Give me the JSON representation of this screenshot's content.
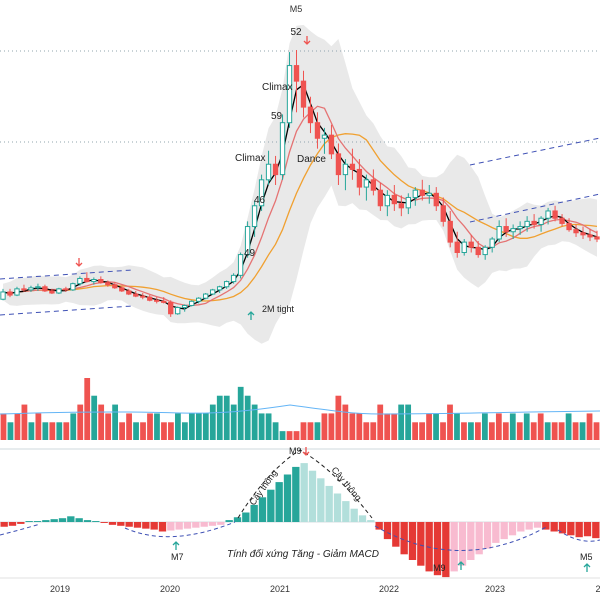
{
  "chart_data": {
    "type": "candlestick",
    "x_axis": {
      "ticks": [
        "2019",
        "2020",
        "2021",
        "2022",
        "2023",
        "2"
      ]
    },
    "price_panel": {
      "candles": [
        [
          2.0,
          3.0,
          1.9,
          2.7
        ],
        [
          2.7,
          3.0,
          2.2,
          2.4
        ],
        [
          2.4,
          3.2,
          2.3,
          3.0
        ],
        [
          3.0,
          3.4,
          2.7,
          2.9
        ],
        [
          2.9,
          3.3,
          2.7,
          3.1
        ],
        [
          3.1,
          3.5,
          2.8,
          3.2
        ],
        [
          3.2,
          3.4,
          2.7,
          2.8
        ],
        [
          2.8,
          3.0,
          2.5,
          2.6
        ],
        [
          2.6,
          3.1,
          2.5,
          3.0
        ],
        [
          3.0,
          3.2,
          2.7,
          2.9
        ],
        [
          2.9,
          3.6,
          2.8,
          3.5
        ],
        [
          3.5,
          4.2,
          3.3,
          4.0
        ],
        [
          4.0,
          4.6,
          3.6,
          3.7
        ],
        [
          3.7,
          4.1,
          3.4,
          3.9
        ],
        [
          3.9,
          4.2,
          3.5,
          3.6
        ],
        [
          3.6,
          3.8,
          3.2,
          3.4
        ],
        [
          3.4,
          3.6,
          3.0,
          3.1
        ],
        [
          3.1,
          3.3,
          2.7,
          2.8
        ],
        [
          2.8,
          3.0,
          2.4,
          2.5
        ],
        [
          2.5,
          2.8,
          2.2,
          2.3
        ],
        [
          2.3,
          2.6,
          2.0,
          2.2
        ],
        [
          2.2,
          2.4,
          1.8,
          1.9
        ],
        [
          1.9,
          2.2,
          1.6,
          1.8
        ],
        [
          1.8,
          2.2,
          1.6,
          1.7
        ],
        [
          1.7,
          1.9,
          0.3,
          0.6
        ],
        [
          0.6,
          1.3,
          0.5,
          1.2
        ],
        [
          1.2,
          1.5,
          0.8,
          1.4
        ],
        [
          1.4,
          1.9,
          1.3,
          1.8
        ],
        [
          1.8,
          2.2,
          1.6,
          2.1
        ],
        [
          2.1,
          2.6,
          2.0,
          2.5
        ],
        [
          2.5,
          3.0,
          2.4,
          2.9
        ],
        [
          2.9,
          3.3,
          2.6,
          3.2
        ],
        [
          3.2,
          3.8,
          3.0,
          3.7
        ],
        [
          3.7,
          4.5,
          3.5,
          4.3
        ],
        [
          4.3,
          6.5,
          4.0,
          6.3
        ],
        [
          6.3,
          9.5,
          6.0,
          9.0
        ],
        [
          9.0,
          11.5,
          8.0,
          11.0
        ],
        [
          11.0,
          14.0,
          10.5,
          13.5
        ],
        [
          13.5,
          16.3,
          13.0,
          15.0
        ],
        [
          15.0,
          15.8,
          13.0,
          14.0
        ],
        [
          14.0,
          19.8,
          13.5,
          19.0
        ],
        [
          19.0,
          25.8,
          18.5,
          24.5
        ],
        [
          24.5,
          26.0,
          20.0,
          23.0
        ],
        [
          23.0,
          24.0,
          19.5,
          20.5
        ],
        [
          20.5,
          21.5,
          18.0,
          19.0
        ],
        [
          19.0,
          20.0,
          16.5,
          17.5
        ],
        [
          17.5,
          18.5,
          16.0,
          17.8
        ],
        [
          17.8,
          18.8,
          15.5,
          16.0
        ],
        [
          16.0,
          17.0,
          13.0,
          14.0
        ],
        [
          14.0,
          15.5,
          12.5,
          15.0
        ],
        [
          15.0,
          16.5,
          13.5,
          14.5
        ],
        [
          14.5,
          15.5,
          12.0,
          12.8
        ],
        [
          12.8,
          14.0,
          11.5,
          13.5
        ],
        [
          13.5,
          14.5,
          12.0,
          12.5
        ],
        [
          12.5,
          13.2,
          10.5,
          11.0
        ],
        [
          11.0,
          12.5,
          10.0,
          12.0
        ],
        [
          12.0,
          13.0,
          10.5,
          11.2
        ],
        [
          11.2,
          12.0,
          10.0,
          10.8
        ],
        [
          10.8,
          12.2,
          10.2,
          11.8
        ],
        [
          11.8,
          12.8,
          11.0,
          12.5
        ],
        [
          12.5,
          13.5,
          11.5,
          12.0
        ],
        [
          12.0,
          13.0,
          11.2,
          12.2
        ],
        [
          12.2,
          12.8,
          10.5,
          11.0
        ],
        [
          11.0,
          11.8,
          9.0,
          9.5
        ],
        [
          9.5,
          10.5,
          7.0,
          7.5
        ],
        [
          7.5,
          8.5,
          6.0,
          6.5
        ],
        [
          6.5,
          7.8,
          6.2,
          7.5
        ],
        [
          7.5,
          8.2,
          6.5,
          7.0
        ],
        [
          7.0,
          7.6,
          6.0,
          6.3
        ],
        [
          6.3,
          7.2,
          5.8,
          7.0
        ],
        [
          7.0,
          8.0,
          6.5,
          7.8
        ],
        [
          7.8,
          9.6,
          7.5,
          9.0
        ],
        [
          9.0,
          9.8,
          8.0,
          8.5
        ],
        [
          8.5,
          9.2,
          7.8,
          8.8
        ],
        [
          8.8,
          9.5,
          8.2,
          9.0
        ],
        [
          9.0,
          10.0,
          8.5,
          9.5
        ],
        [
          9.5,
          10.2,
          8.8,
          9.2
        ],
        [
          9.2,
          10.0,
          8.5,
          9.8
        ],
        [
          9.8,
          10.8,
          9.2,
          10.5
        ],
        [
          10.5,
          11.0,
          9.5,
          9.8
        ],
        [
          9.8,
          10.2,
          9.0,
          9.3
        ],
        [
          9.3,
          9.8,
          8.5,
          8.7
        ],
        [
          8.7,
          9.2,
          8.0,
          8.4
        ],
        [
          8.4,
          9.0,
          7.8,
          8.2
        ],
        [
          8.2,
          8.8,
          7.6,
          8.0
        ],
        [
          8.0,
          8.6,
          7.5,
          7.8
        ]
      ],
      "annotations": [
        {
          "text": "M5"
        },
        {
          "text": "52"
        },
        {
          "text": "Climax"
        },
        {
          "text": "59"
        },
        {
          "text": "Climax"
        },
        {
          "text": "Dance"
        },
        {
          "text": "46"
        },
        {
          "text": "49"
        },
        {
          "text": "2M tight"
        }
      ]
    },
    "volume_panel": {
      "bars": [
        [
          3,
          "r"
        ],
        [
          2,
          "g"
        ],
        [
          3,
          "r"
        ],
        [
          4,
          "r"
        ],
        [
          2,
          "g"
        ],
        [
          3,
          "r"
        ],
        [
          2,
          "g"
        ],
        [
          2,
          "r"
        ],
        [
          2,
          "g"
        ],
        [
          2,
          "r"
        ],
        [
          3,
          "g"
        ],
        [
          4,
          "r"
        ],
        [
          7,
          "r"
        ],
        [
          5,
          "g"
        ],
        [
          4,
          "r"
        ],
        [
          3,
          "r"
        ],
        [
          4,
          "g"
        ],
        [
          2,
          "r"
        ],
        [
          3,
          "r"
        ],
        [
          2,
          "g"
        ],
        [
          2,
          "r"
        ],
        [
          3,
          "r"
        ],
        [
          3,
          "g"
        ],
        [
          2,
          "r"
        ],
        [
          2,
          "r"
        ],
        [
          3,
          "g"
        ],
        [
          2,
          "g"
        ],
        [
          3,
          "g"
        ],
        [
          3,
          "g"
        ],
        [
          3,
          "g"
        ],
        [
          4,
          "g"
        ],
        [
          5,
          "g"
        ],
        [
          5,
          "g"
        ],
        [
          4,
          "g"
        ],
        [
          6,
          "g"
        ],
        [
          5,
          "g"
        ],
        [
          4,
          "g"
        ],
        [
          3,
          "g"
        ],
        [
          3,
          "g"
        ],
        [
          2,
          "g"
        ],
        [
          1,
          "g"
        ],
        [
          1,
          "r"
        ],
        [
          1,
          "r"
        ],
        [
          2,
          "r"
        ],
        [
          2,
          "r"
        ],
        [
          2,
          "g"
        ],
        [
          3,
          "r"
        ],
        [
          3,
          "r"
        ],
        [
          5,
          "r"
        ],
        [
          4,
          "r"
        ],
        [
          3,
          "r"
        ],
        [
          3,
          "r"
        ],
        [
          2,
          "r"
        ],
        [
          2,
          "r"
        ],
        [
          4,
          "r"
        ],
        [
          3,
          "r"
        ],
        [
          3,
          "r"
        ],
        [
          4,
          "g"
        ],
        [
          4,
          "g"
        ],
        [
          2,
          "r"
        ],
        [
          2,
          "r"
        ],
        [
          3,
          "r"
        ],
        [
          3,
          "g"
        ],
        [
          2,
          "r"
        ],
        [
          4,
          "r"
        ],
        [
          3,
          "g"
        ],
        [
          2,
          "r"
        ],
        [
          2,
          "g"
        ],
        [
          2,
          "r"
        ],
        [
          3,
          "g"
        ],
        [
          2,
          "r"
        ],
        [
          3,
          "r"
        ],
        [
          2,
          "r"
        ],
        [
          3,
          "g"
        ],
        [
          2,
          "r"
        ],
        [
          3,
          "g"
        ],
        [
          2,
          "r"
        ],
        [
          3,
          "r"
        ],
        [
          2,
          "g"
        ],
        [
          2,
          "r"
        ],
        [
          2,
          "r"
        ],
        [
          3,
          "g"
        ],
        [
          2,
          "r"
        ],
        [
          2,
          "g"
        ],
        [
          3,
          "r"
        ],
        [
          2,
          "r"
        ]
      ]
    },
    "macd_panel": {
      "bars": [
        [
          -0.5,
          "r"
        ],
        [
          -0.4,
          "r"
        ],
        [
          -0.2,
          "r"
        ],
        [
          0.1,
          "g"
        ],
        [
          0.1,
          "g"
        ],
        [
          0.2,
          "g"
        ],
        [
          0.3,
          "g"
        ],
        [
          0.4,
          "g"
        ],
        [
          0.6,
          "g"
        ],
        [
          0.4,
          "g"
        ],
        [
          0.2,
          "g"
        ],
        [
          0.1,
          "g"
        ],
        [
          -0.1,
          "r"
        ],
        [
          -0.3,
          "r"
        ],
        [
          -0.4,
          "r"
        ],
        [
          -0.5,
          "r"
        ],
        [
          -0.6,
          "r"
        ],
        [
          -0.7,
          "r"
        ],
        [
          -0.8,
          "r"
        ],
        [
          -1.0,
          "r"
        ],
        [
          -0.9,
          "p"
        ],
        [
          -0.8,
          "p"
        ],
        [
          -0.7,
          "p"
        ],
        [
          -0.6,
          "p"
        ],
        [
          -0.5,
          "p"
        ],
        [
          -0.4,
          "p"
        ],
        [
          -0.3,
          "p"
        ],
        [
          0.2,
          "g"
        ],
        [
          0.5,
          "g"
        ],
        [
          1.0,
          "g"
        ],
        [
          1.8,
          "g"
        ],
        [
          2.6,
          "g"
        ],
        [
          3.4,
          "g"
        ],
        [
          4.2,
          "g"
        ],
        [
          5.0,
          "g"
        ],
        [
          5.8,
          "g"
        ],
        [
          6.2,
          "m"
        ],
        [
          5.4,
          "m"
        ],
        [
          4.6,
          "m"
        ],
        [
          3.8,
          "m"
        ],
        [
          3.0,
          "m"
        ],
        [
          2.2,
          "m"
        ],
        [
          1.4,
          "m"
        ],
        [
          0.7,
          "m"
        ],
        [
          0.2,
          "m"
        ],
        [
          -0.8,
          "r"
        ],
        [
          -1.8,
          "r"
        ],
        [
          -2.6,
          "r"
        ],
        [
          -3.4,
          "r"
        ],
        [
          -4.0,
          "r"
        ],
        [
          -4.6,
          "r"
        ],
        [
          -5.2,
          "r"
        ],
        [
          -5.6,
          "r"
        ],
        [
          -5.8,
          "r"
        ],
        [
          -5.2,
          "p"
        ],
        [
          -4.6,
          "p"
        ],
        [
          -4.0,
          "p"
        ],
        [
          -3.4,
          "p"
        ],
        [
          -2.8,
          "p"
        ],
        [
          -2.2,
          "p"
        ],
        [
          -1.8,
          "p"
        ],
        [
          -1.4,
          "p"
        ],
        [
          -1.0,
          "p"
        ],
        [
          -0.8,
          "p"
        ],
        [
          -0.6,
          "p"
        ],
        [
          -0.8,
          "r"
        ],
        [
          -1.0,
          "r"
        ],
        [
          -1.2,
          "r"
        ],
        [
          -1.4,
          "r"
        ],
        [
          -1.6,
          "r"
        ],
        [
          -1.5,
          "r"
        ],
        [
          -1.7,
          "r"
        ]
      ],
      "annotations": [
        {
          "text": "M9"
        },
        {
          "text": "Cây thông"
        },
        {
          "text": "Cây thông"
        },
        {
          "text": "M7"
        },
        {
          "text": "M9"
        },
        {
          "text": "M5"
        },
        {
          "text": "Tính đối xứng Tăng - Giảm MACD"
        }
      ]
    },
    "colors": {
      "up": "#26a69a",
      "down": "#ef5350",
      "up_light": "#b2dfdb",
      "down_light": "#f8bbd0",
      "ma_fast": "#000000",
      "ma_mid": "#e57373",
      "ma_slow": "#f0a030",
      "cloud": "#e0e0e0",
      "channel": "#3f51b5",
      "grid": "#90a4ae",
      "arrow_up": "#26a69a",
      "arrow_down": "#ef5350"
    }
  }
}
